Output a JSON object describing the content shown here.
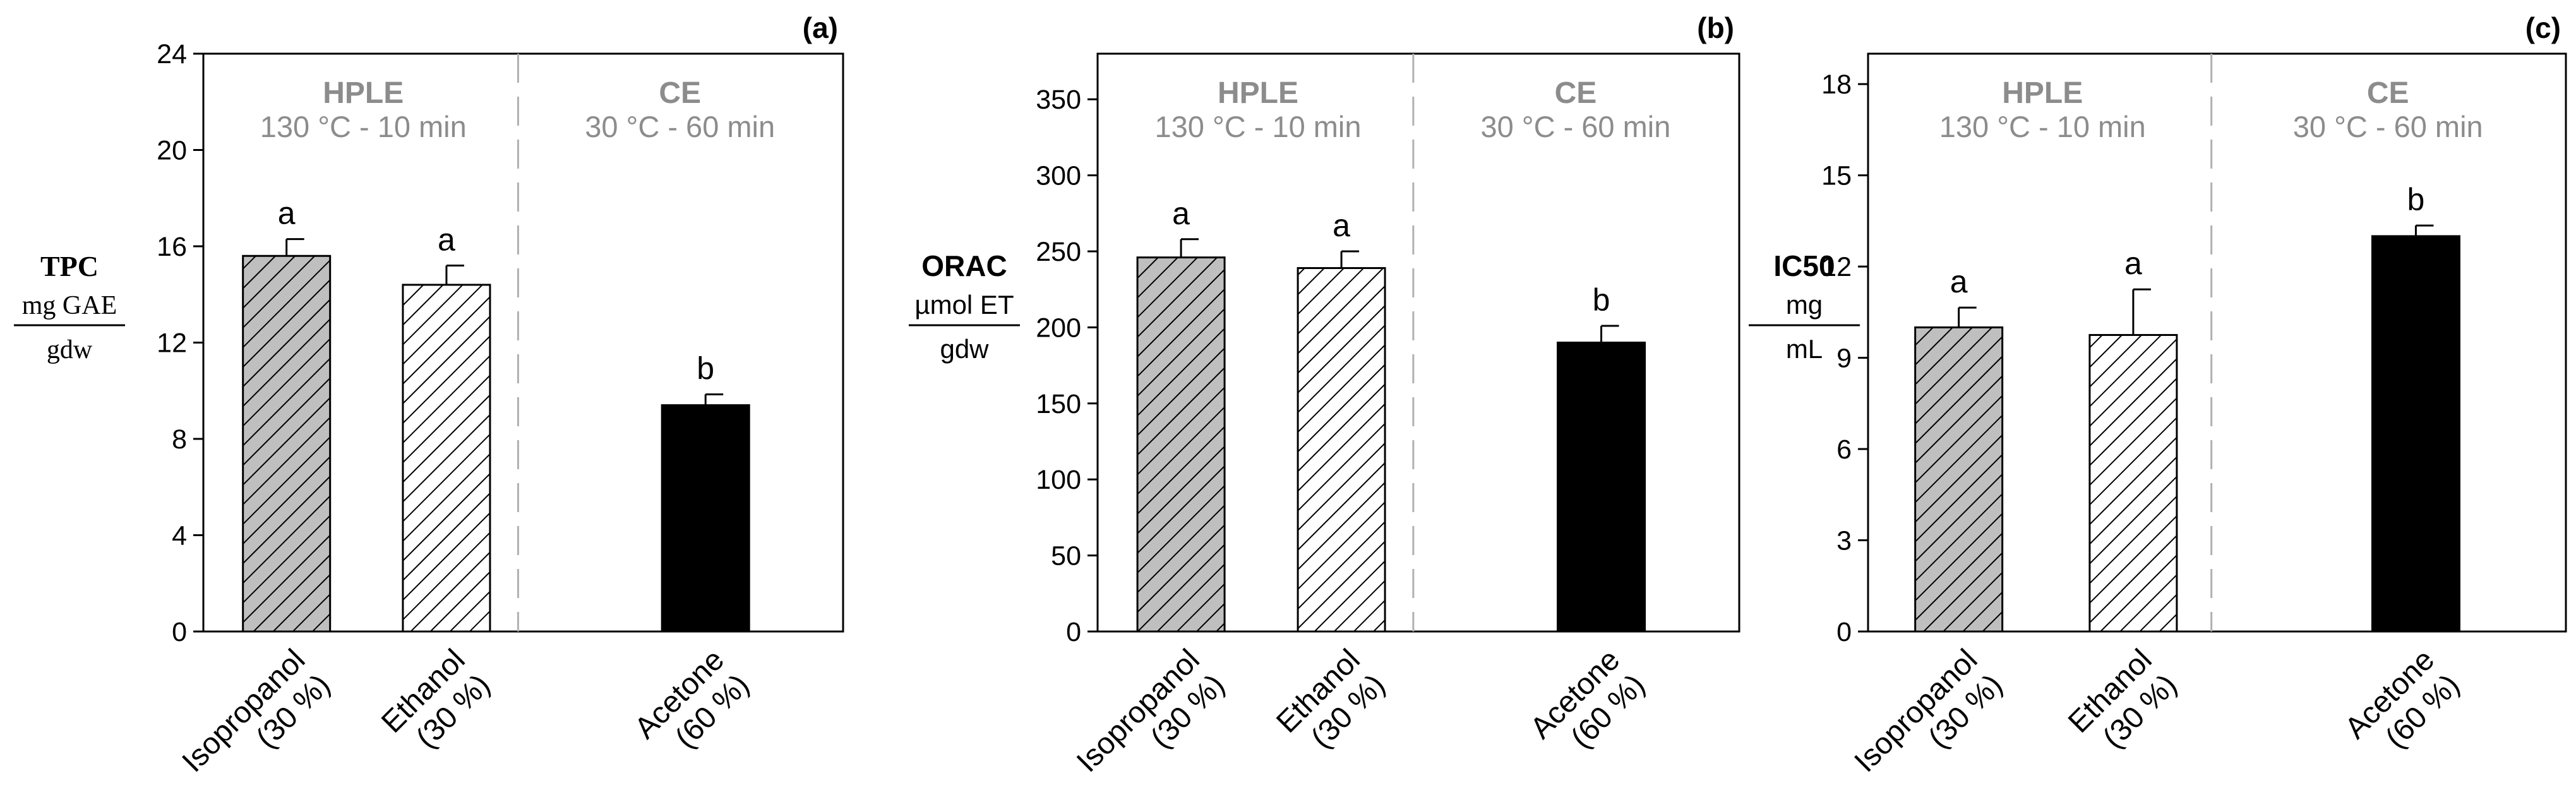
{
  "figure": {
    "panel_labels": [
      "(a)",
      "(b)",
      "(c)"
    ],
    "group_header": {
      "left_title": "HPLE",
      "left_sub": "130 °C - 10 min",
      "right_title": "CE",
      "right_sub": "30 °C - 60 min"
    },
    "categories": [
      {
        "line1": "Isopropanol",
        "line2": "(30 %)"
      },
      {
        "line1": "Ethanol",
        "line2": "(30 %)"
      },
      {
        "line1": "Acetone",
        "line2": "(60 %)"
      }
    ],
    "bar_styles": [
      "gray-hatch",
      "white-hatch",
      "solid-black"
    ],
    "colors": {
      "bar_gray": "#bfbfbf",
      "bar_black": "#000000",
      "header_text": "#8c8c8c",
      "divider": "#b0b0b0",
      "axis": "#000000"
    }
  },
  "chart_data": [
    {
      "type": "bar",
      "panel": "(a)",
      "categories": [
        "Isopropanol (30 %)",
        "Ethanol (30 %)",
        "Acetone (60 %)"
      ],
      "values": [
        15.6,
        14.4,
        9.4
      ],
      "errors": [
        0.7,
        0.8,
        0.45
      ],
      "significance": [
        "a",
        "a",
        "b"
      ],
      "ylim": [
        0,
        24
      ],
      "yticks": [
        0,
        4,
        8,
        12,
        16,
        20,
        24
      ],
      "ylabel": {
        "title": "TPC",
        "numerator": "mg GAE",
        "denominator": "gdw",
        "font": "serif"
      }
    },
    {
      "type": "bar",
      "panel": "(b)",
      "categories": [
        "Isopropanol (30 %)",
        "Ethanol (30 %)",
        "Acetone (60 %)"
      ],
      "values": [
        246,
        239,
        190
      ],
      "errors": [
        12,
        11,
        11
      ],
      "significance": [
        "a",
        "a",
        "b"
      ],
      "ylim": [
        0,
        380
      ],
      "yticks": [
        0,
        50,
        100,
        150,
        200,
        250,
        300,
        350
      ],
      "ylabel": {
        "title": "ORAC",
        "numerator": "µmol ET",
        "denominator": "gdw",
        "font": "sans"
      }
    },
    {
      "type": "bar",
      "panel": "(c)",
      "categories": [
        "Isopropanol (30 %)",
        "Ethanol (30 %)",
        "Acetone (60 %)"
      ],
      "values": [
        10.0,
        9.75,
        13.0
      ],
      "errors": [
        0.65,
        1.5,
        0.35
      ],
      "significance": [
        "a",
        "a",
        "b"
      ],
      "ylim": [
        0,
        19
      ],
      "yticks": [
        0,
        3,
        6,
        9,
        12,
        15,
        18
      ],
      "ylabel": {
        "title": "IC50",
        "numerator": "mg",
        "denominator": "mL",
        "font": "sans"
      }
    }
  ]
}
